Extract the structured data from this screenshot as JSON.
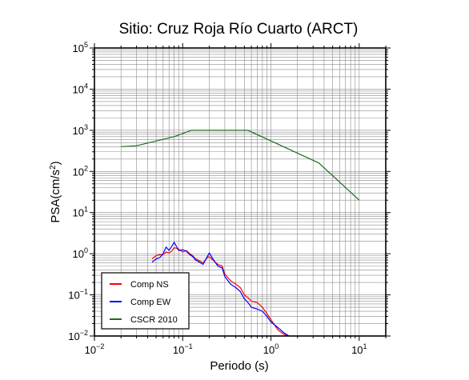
{
  "chart_data": {
    "type": "line",
    "title": "Sitio: Cruz Roja Río Cuarto (ARCT)",
    "xlabel": "Periodo (s)",
    "ylabel_main": "PSA(cm/s",
    "ylabel_sup": "2",
    "ylabel_tail": ")",
    "x_scale": "log",
    "y_scale": "log",
    "xlim": [
      0.01,
      20
    ],
    "ylim": [
      0.01,
      100000
    ],
    "grid": true,
    "legend_position": "bottom-left",
    "x_ticks": [
      {
        "value": 0.01,
        "base": "10",
        "exp": "−2"
      },
      {
        "value": 0.1,
        "base": "10",
        "exp": "−1"
      },
      {
        "value": 1,
        "base": "10",
        "exp": "0"
      },
      {
        "value": 10,
        "base": "10",
        "exp": "1"
      }
    ],
    "y_ticks": [
      {
        "value": 0.01,
        "base": "10",
        "exp": "−2"
      },
      {
        "value": 0.1,
        "base": "10",
        "exp": "−1"
      },
      {
        "value": 1,
        "base": "10",
        "exp": "0"
      },
      {
        "value": 10,
        "base": "10",
        "exp": "1"
      },
      {
        "value": 100,
        "base": "10",
        "exp": "2"
      },
      {
        "value": 1000,
        "base": "10",
        "exp": "3"
      },
      {
        "value": 10000,
        "base": "10",
        "exp": "4"
      },
      {
        "value": 100000,
        "base": "10",
        "exp": "5"
      }
    ],
    "series": [
      {
        "name": "Comp NS",
        "color": "#ff0000",
        "x": [
          0.045,
          0.05,
          0.055,
          0.06,
          0.065,
          0.07,
          0.075,
          0.08,
          0.09,
          0.1,
          0.11,
          0.12,
          0.13,
          0.14,
          0.15,
          0.17,
          0.19,
          0.2,
          0.22,
          0.25,
          0.28,
          0.3,
          0.35,
          0.4,
          0.45,
          0.5,
          0.55,
          0.6,
          0.7,
          0.8,
          0.9,
          1.0,
          1.2,
          1.4,
          1.6
        ],
        "y": [
          0.75,
          0.9,
          0.95,
          0.95,
          1.1,
          1.05,
          1.15,
          1.4,
          1.3,
          1.1,
          1.2,
          1.0,
          0.9,
          0.75,
          0.7,
          0.6,
          0.8,
          0.85,
          0.7,
          0.55,
          0.5,
          0.32,
          0.22,
          0.18,
          0.15,
          0.1,
          0.085,
          0.07,
          0.065,
          0.05,
          0.035,
          0.025,
          0.014,
          0.011,
          0.01
        ]
      },
      {
        "name": "Comp EW",
        "color": "#0000ff",
        "x": [
          0.045,
          0.05,
          0.055,
          0.06,
          0.065,
          0.07,
          0.075,
          0.08,
          0.09,
          0.1,
          0.11,
          0.12,
          0.13,
          0.14,
          0.15,
          0.17,
          0.19,
          0.2,
          0.22,
          0.25,
          0.28,
          0.3,
          0.35,
          0.4,
          0.45,
          0.5,
          0.55,
          0.6,
          0.7,
          0.8,
          0.9,
          1.0,
          1.2,
          1.4,
          1.6
        ],
        "y": [
          0.62,
          0.75,
          0.8,
          1.0,
          1.45,
          1.2,
          1.5,
          1.9,
          1.2,
          1.25,
          1.15,
          0.95,
          0.85,
          0.7,
          0.65,
          0.55,
          0.85,
          1.05,
          0.75,
          0.5,
          0.45,
          0.28,
          0.18,
          0.15,
          0.12,
          0.08,
          0.065,
          0.05,
          0.045,
          0.04,
          0.03,
          0.022,
          0.016,
          0.012,
          0.01
        ]
      },
      {
        "name": "CSCR 2010",
        "color": "#1f6b1f",
        "x": [
          0.02,
          0.03,
          0.08,
          0.125,
          0.55,
          3.5,
          10
        ],
        "y": [
          400,
          420,
          700,
          1000,
          1000,
          160,
          20
        ]
      }
    ]
  }
}
